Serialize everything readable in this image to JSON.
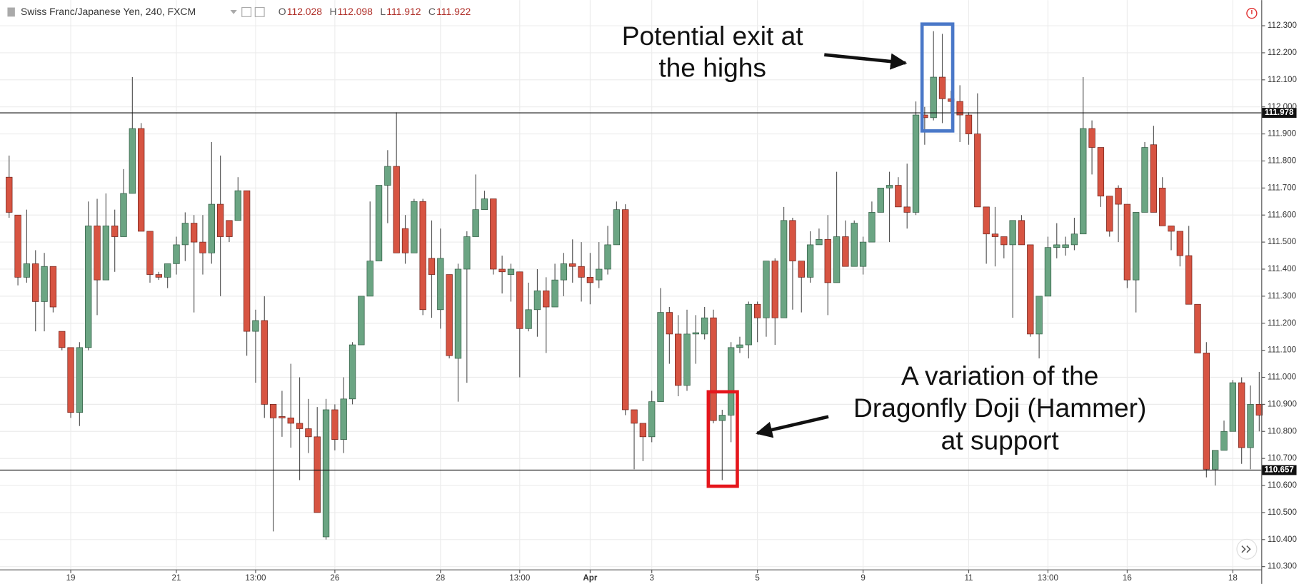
{
  "header": {
    "symbol": "Swiss Franc/Japanese Yen, 240, FXCM",
    "ohlc": [
      {
        "key": "O",
        "value": 112.028
      },
      {
        "key": "H",
        "value": 112.098
      },
      {
        "key": "L",
        "value": 111.912
      },
      {
        "key": "C",
        "value": 111.922
      }
    ]
  },
  "chart_data": {
    "type": "candlestick",
    "categories": [
      null,
      null,
      null,
      null,
      null,
      null,
      null,
      "19",
      null,
      null,
      null,
      null,
      null,
      null,
      null,
      null,
      null,
      null,
      null,
      "21",
      null,
      null,
      null,
      null,
      null,
      null,
      null,
      null,
      "13:00",
      null,
      null,
      null,
      null,
      null,
      null,
      null,
      null,
      "26",
      null,
      null,
      null,
      null,
      null,
      null,
      null,
      null,
      null,
      null,
      null,
      "28",
      null,
      null,
      null,
      null,
      null,
      null,
      null,
      null,
      "13:00",
      null,
      null,
      null,
      null,
      null,
      null,
      null,
      "Apr",
      null,
      null,
      null,
      null,
      null,
      null,
      "3",
      null,
      null,
      null,
      null,
      null,
      null,
      null,
      null,
      null,
      null,
      null,
      "5",
      null,
      null,
      null,
      null,
      null,
      null,
      null,
      null,
      null,
      null,
      null,
      "9",
      null,
      null,
      null,
      null,
      null,
      null,
      null,
      null,
      null,
      null,
      null,
      "11",
      null,
      null,
      null,
      null,
      null,
      null,
      null,
      null,
      "13:00",
      null,
      null,
      null,
      null,
      null,
      null,
      null,
      null,
      "16",
      null,
      null,
      null,
      null,
      null,
      null,
      null,
      null,
      null,
      null,
      null,
      "18",
      null,
      null,
      null
    ],
    "open": [
      111.74,
      111.6,
      111.37,
      111.42,
      111.28,
      111.41,
      111.17,
      111.11,
      110.87,
      111.11,
      111.56,
      111.36,
      111.56,
      111.52,
      111.68,
      111.92,
      111.54,
      111.38,
      111.37,
      111.42,
      111.49,
      111.57,
      111.5,
      111.46,
      111.64,
      111.58,
      111.58,
      111.69,
      111.17,
      111.21,
      110.9,
      110.855,
      110.85,
      110.83,
      110.81,
      110.78,
      110.41,
      110.88,
      110.77,
      110.92,
      111.12,
      111.3,
      111.43,
      111.71,
      111.78,
      111.55,
      111.46,
      111.65,
      111.44,
      111.25,
      111.38,
      111.07,
      111.4,
      111.52,
      111.62,
      111.66,
      111.4,
      111.38,
      111.39,
      111.18,
      111.25,
      111.32,
      111.26,
      111.36,
      111.42,
      111.41,
      111.37,
      111.36,
      111.4,
      111.49,
      111.62,
      110.88,
      110.83,
      110.78,
      110.91,
      111.24,
      111.16,
      110.97,
      111.16,
      111.16,
      111.22,
      110.84,
      110.86,
      111.11,
      111.12,
      111.27,
      111.22,
      111.43,
      111.22,
      111.58,
      111.43,
      111.37,
      111.49,
      111.51,
      111.35,
      111.52,
      111.41,
      111.41,
      111.5,
      111.61,
      111.7,
      111.71,
      111.63,
      111.61,
      111.97,
      111.96,
      112.11,
      112.03,
      112.02,
      111.97,
      111.9,
      111.63,
      111.53,
      111.52,
      111.49,
      111.58,
      111.49,
      111.16,
      111.3,
      111.48,
      111.48,
      111.49,
      111.53,
      111.92,
      111.85,
      111.67,
      111.7,
      111.64,
      111.36,
      111.61,
      111.86,
      111.7,
      111.56,
      111.54,
      111.45,
      111.27,
      111.09,
      110.66,
      110.73,
      110.8,
      110.98,
      110.74,
      110.9
    ],
    "high": [
      111.82,
      111.6,
      111.62,
      111.47,
      111.46,
      111.41,
      111.17,
      111.11,
      111.13,
      111.65,
      111.66,
      111.68,
      111.62,
      111.77,
      112.11,
      111.94,
      111.54,
      111.39,
      111.42,
      111.52,
      111.61,
      111.6,
      111.6,
      111.87,
      111.82,
      111.58,
      111.74,
      111.69,
      111.25,
      111.3,
      110.9,
      110.95,
      111.05,
      111.0,
      110.92,
      110.89,
      110.92,
      110.9,
      111.0,
      111.13,
      111.3,
      111.65,
      111.71,
      111.84,
      111.98,
      111.6,
      111.66,
      111.66,
      111.58,
      111.55,
      111.38,
      111.42,
      111.54,
      111.75,
      111.69,
      111.66,
      111.45,
      111.42,
      111.39,
      111.35,
      111.4,
      111.37,
      111.42,
      111.46,
      111.51,
      111.5,
      111.46,
      111.5,
      111.56,
      111.65,
      111.64,
      110.88,
      110.83,
      110.95,
      111.33,
      111.26,
      111.23,
      111.25,
      111.23,
      111.26,
      111.25,
      110.88,
      111.13,
      111.15,
      111.28,
      111.28,
      111.43,
      111.44,
      111.63,
      111.59,
      111.43,
      111.54,
      111.55,
      111.6,
      111.76,
      111.58,
      111.58,
      111.52,
      111.65,
      111.7,
      111.76,
      111.74,
      111.79,
      112.02,
      112.0,
      112.28,
      112.27,
      112.06,
      112.08,
      111.98,
      112.05,
      111.63,
      111.63,
      111.52,
      111.58,
      111.6,
      111.49,
      111.3,
      111.52,
      111.57,
      111.52,
      111.59,
      112.11,
      111.95,
      111.85,
      111.67,
      111.71,
      111.64,
      111.61,
      111.87,
      111.93,
      111.74,
      111.56,
      111.54,
      111.56,
      111.27,
      111.13,
      110.73,
      110.84,
      110.99,
      111.0,
      110.97,
      111.02
    ],
    "low": [
      111.59,
      111.34,
      111.35,
      111.17,
      111.17,
      111.24,
      111.1,
      110.85,
      110.82,
      111.1,
      111.23,
      111.36,
      111.39,
      111.52,
      111.68,
      111.54,
      111.35,
      111.36,
      111.33,
      111.38,
      111.43,
      111.24,
      111.38,
      111.42,
      111.3,
      111.5,
      111.58,
      111.08,
      110.98,
      110.85,
      110.43,
      110.78,
      110.74,
      110.62,
      110.72,
      110.5,
      110.4,
      110.73,
      110.72,
      110.9,
      111.12,
      111.3,
      111.43,
      111.57,
      111.46,
      111.42,
      111.46,
      111.23,
      111.22,
      111.18,
      111.07,
      110.91,
      110.98,
      111.52,
      111.62,
      111.38,
      111.31,
      111.28,
      111.0,
      111.17,
      111.15,
      111.09,
      111.26,
      111.3,
      111.35,
      111.28,
      111.27,
      111.33,
      111.38,
      111.49,
      110.86,
      110.66,
      110.69,
      110.76,
      110.91,
      111.05,
      110.93,
      110.95,
      111.05,
      111.14,
      110.83,
      110.62,
      110.76,
      111.09,
      111.07,
      111.13,
      111.15,
      111.12,
      111.22,
      111.25,
      111.24,
      111.35,
      111.49,
      111.23,
      111.35,
      111.41,
      111.41,
      111.38,
      111.5,
      111.61,
      111.5,
      111.63,
      111.55,
      111.6,
      111.86,
      111.95,
      111.94,
      111.98,
      111.87,
      111.86,
      111.63,
      111.42,
      111.41,
      111.44,
      111.22,
      111.49,
      111.15,
      111.07,
      111.3,
      111.44,
      111.45,
      111.47,
      111.53,
      111.75,
      111.63,
      111.52,
      111.5,
      111.33,
      111.24,
      111.61,
      111.61,
      111.56,
      111.47,
      111.41,
      111.27,
      111.09,
      110.63,
      110.6,
      110.73,
      110.8,
      110.68,
      110.66,
      110.8
    ],
    "close": [
      111.61,
      111.37,
      111.42,
      111.28,
      111.41,
      111.26,
      111.11,
      110.87,
      111.11,
      111.56,
      111.36,
      111.56,
      111.52,
      111.68,
      111.92,
      111.54,
      111.38,
      111.37,
      111.42,
      111.49,
      111.57,
      111.5,
      111.46,
      111.64,
      111.52,
      111.52,
      111.69,
      111.17,
      111.21,
      110.9,
      110.85,
      110.85,
      110.83,
      110.81,
      110.78,
      110.5,
      110.88,
      110.77,
      110.92,
      111.12,
      111.3,
      111.43,
      111.71,
      111.78,
      111.46,
      111.46,
      111.65,
      111.25,
      111.38,
      111.44,
      111.08,
      111.4,
      111.52,
      111.62,
      111.66,
      111.4,
      111.39,
      111.4,
      111.18,
      111.25,
      111.32,
      111.26,
      111.36,
      111.42,
      111.41,
      111.37,
      111.35,
      111.4,
      111.49,
      111.62,
      110.88,
      110.83,
      110.78,
      110.91,
      111.24,
      111.16,
      110.97,
      111.16,
      111.165,
      111.22,
      110.84,
      110.86,
      111.11,
      111.12,
      111.27,
      111.22,
      111.43,
      111.22,
      111.58,
      111.43,
      111.37,
      111.49,
      111.51,
      111.35,
      111.52,
      111.41,
      111.57,
      111.5,
      111.61,
      111.7,
      111.71,
      111.63,
      111.61,
      111.97,
      111.96,
      112.11,
      112.03,
      112.02,
      111.97,
      111.9,
      111.63,
      111.53,
      111.52,
      111.49,
      111.58,
      111.49,
      111.16,
      111.3,
      111.48,
      111.49,
      111.49,
      111.53,
      111.92,
      111.85,
      111.67,
      111.54,
      111.64,
      111.36,
      111.61,
      111.85,
      111.61,
      111.56,
      111.54,
      111.45,
      111.27,
      111.09,
      110.66,
      110.73,
      110.8,
      110.98,
      110.74,
      110.9,
      110.86
    ],
    "up_color": "#6ba583",
    "down_color": "#d75442",
    "ylim": [
      110.288,
      112.395
    ],
    "yticks": [
      {
        "value": 110.3,
        "label": "110.300"
      },
      {
        "value": 110.4,
        "label": "110.400"
      },
      {
        "value": 110.5,
        "label": "110.500"
      },
      {
        "value": 110.6,
        "label": "110.600"
      },
      {
        "value": 110.7,
        "label": "110.700"
      },
      {
        "value": 110.8,
        "label": "110.800"
      },
      {
        "value": 110.9,
        "label": "110.900"
      },
      {
        "value": 111.0,
        "label": "111.000"
      },
      {
        "value": 111.1,
        "label": "111.100"
      },
      {
        "value": 111.2,
        "label": "111.200"
      },
      {
        "value": 111.3,
        "label": "111.300"
      },
      {
        "value": 111.4,
        "label": "111.400"
      },
      {
        "value": 111.5,
        "label": "111.500"
      },
      {
        "value": 111.6,
        "label": "111.600"
      },
      {
        "value": 111.7,
        "label": "111.700"
      },
      {
        "value": 111.8,
        "label": "111.800"
      },
      {
        "value": 111.9,
        "label": "111.900"
      },
      {
        "value": 112.0,
        "label": "112.000"
      },
      {
        "value": 112.1,
        "label": "112.100"
      },
      {
        "value": 112.2,
        "label": "112.200"
      },
      {
        "value": 112.3,
        "label": "112.300"
      }
    ],
    "grid": true,
    "hlines": [
      {
        "value": 111.978,
        "label": "111.978"
      },
      {
        "value": 110.657,
        "label": "110.657"
      }
    ],
    "annotations": [
      {
        "lines": [
          "Potential exit at",
          "the highs"
        ]
      },
      {
        "lines": [
          "A variation of the",
          "Dragonfly Doji (Hammer)",
          "at support"
        ]
      }
    ]
  }
}
